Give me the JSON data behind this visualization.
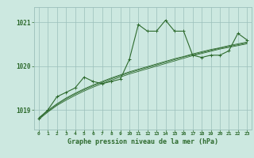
{
  "x": [
    0,
    1,
    2,
    3,
    4,
    5,
    6,
    7,
    8,
    9,
    10,
    11,
    12,
    13,
    14,
    15,
    16,
    17,
    18,
    19,
    20,
    21,
    22,
    23
  ],
  "main_line": [
    1018.8,
    1019.0,
    1019.3,
    1019.4,
    1019.5,
    1019.75,
    1019.65,
    1019.6,
    1019.65,
    1019.7,
    1020.15,
    1020.95,
    1020.8,
    1020.8,
    1021.05,
    1020.8,
    1020.8,
    1020.25,
    1020.2,
    1020.25,
    1020.25,
    1020.35,
    1020.75,
    1020.6
  ],
  "smooth1": [
    1018.78,
    1018.95,
    1019.1,
    1019.22,
    1019.33,
    1019.43,
    1019.52,
    1019.6,
    1019.68,
    1019.75,
    1019.82,
    1019.88,
    1019.94,
    1020.0,
    1020.06,
    1020.12,
    1020.18,
    1020.24,
    1020.29,
    1020.34,
    1020.39,
    1020.43,
    1020.47,
    1020.51
  ],
  "smooth2": [
    1018.8,
    1018.97,
    1019.12,
    1019.25,
    1019.36,
    1019.46,
    1019.55,
    1019.63,
    1019.71,
    1019.78,
    1019.85,
    1019.91,
    1019.97,
    1020.03,
    1020.09,
    1020.15,
    1020.21,
    1020.26,
    1020.31,
    1020.36,
    1020.41,
    1020.45,
    1020.49,
    1020.53
  ],
  "smooth3": [
    1018.82,
    1018.99,
    1019.14,
    1019.27,
    1019.38,
    1019.48,
    1019.57,
    1019.65,
    1019.73,
    1019.8,
    1019.87,
    1019.93,
    1019.99,
    1020.05,
    1020.11,
    1020.17,
    1020.22,
    1020.28,
    1020.33,
    1020.38,
    1020.42,
    1020.47,
    1020.51,
    1020.55
  ],
  "line_color": "#2d6a2d",
  "bg_color": "#cce8e0",
  "grid_color_major": "#9bbfba",
  "grid_color_minor": "#b8d8d2",
  "xlabel": "Graphe pression niveau de la mer (hPa)",
  "ylim": [
    1018.55,
    1021.35
  ],
  "yticks": [
    1019,
    1020,
    1021
  ],
  "xticks": [
    0,
    1,
    2,
    3,
    4,
    5,
    6,
    7,
    8,
    9,
    10,
    11,
    12,
    13,
    14,
    15,
    16,
    17,
    18,
    19,
    20,
    21,
    22,
    23
  ]
}
